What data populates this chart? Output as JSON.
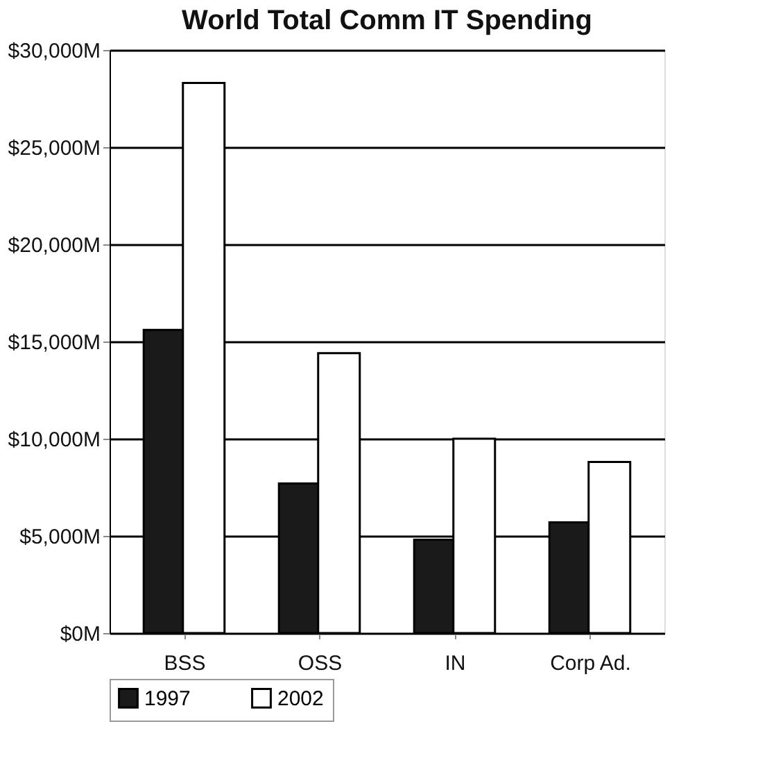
{
  "chart_data": {
    "type": "bar",
    "title": "World Total Comm IT Spending",
    "categories": [
      "BSS",
      "OSS",
      "IN",
      "Corp Ad."
    ],
    "series": [
      {
        "name": "1997",
        "color": "#1a1a1a",
        "values": [
          15600,
          7700,
          4800,
          5700
        ]
      },
      {
        "name": "2002",
        "color": "#ffffff",
        "values": [
          28300,
          14400,
          10000,
          8800
        ]
      }
    ],
    "ylim": [
      0,
      30000
    ],
    "yticks": [
      {
        "value": 0,
        "label": "$0M"
      },
      {
        "value": 5000,
        "label": "$5,000M"
      },
      {
        "value": 10000,
        "label": "$10,000M"
      },
      {
        "value": 15000,
        "label": "$15,000M"
      },
      {
        "value": 20000,
        "label": "$20,000M"
      },
      {
        "value": 25000,
        "label": "$25,000M"
      },
      {
        "value": 30000,
        "label": "$30,000M"
      }
    ],
    "grid": "y",
    "legend": "bottom left"
  }
}
